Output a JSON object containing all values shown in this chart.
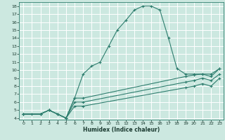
{
  "title": "",
  "xlabel": "Humidex (Indice chaleur)",
  "background_color": "#cce8e0",
  "grid_color": "#ffffff",
  "line_color": "#2e7d6e",
  "xlim": [
    -0.5,
    23.5
  ],
  "ylim": [
    3.8,
    18.5
  ],
  "xticks": [
    0,
    1,
    2,
    3,
    4,
    5,
    6,
    7,
    8,
    9,
    10,
    11,
    12,
    13,
    14,
    15,
    16,
    17,
    18,
    19,
    20,
    21,
    22,
    23
  ],
  "yticks": [
    4,
    5,
    6,
    7,
    8,
    9,
    10,
    11,
    12,
    13,
    14,
    15,
    16,
    17,
    18
  ],
  "line1_x": [
    0,
    1,
    2,
    3,
    4,
    5,
    6,
    7,
    8,
    9,
    10,
    11,
    12,
    13,
    14,
    15,
    16,
    17,
    18,
    19,
    20,
    21,
    22,
    23
  ],
  "line1_y": [
    4.5,
    4.5,
    4.5,
    5.0,
    4.5,
    4.0,
    6.5,
    9.5,
    10.5,
    11.0,
    13.0,
    15.0,
    16.2,
    17.5,
    18.0,
    18.0,
    17.5,
    14.0,
    10.2,
    9.5,
    9.5,
    9.5,
    9.5,
    10.2
  ],
  "line2_x": [
    0,
    2,
    3,
    4,
    5,
    6,
    7,
    19,
    20,
    21,
    22,
    23
  ],
  "line2_y": [
    4.5,
    4.5,
    5.0,
    4.5,
    4.0,
    6.5,
    6.5,
    9.2,
    9.4,
    9.5,
    9.2,
    10.2
  ],
  "line3_x": [
    0,
    2,
    3,
    4,
    5,
    6,
    7,
    19,
    20,
    21,
    22,
    23
  ],
  "line3_y": [
    4.5,
    4.5,
    5.0,
    4.5,
    4.0,
    6.0,
    6.0,
    8.5,
    8.7,
    9.0,
    8.7,
    9.5
  ],
  "line4_x": [
    0,
    2,
    3,
    4,
    5,
    6,
    7,
    19,
    20,
    21,
    22,
    23
  ],
  "line4_y": [
    4.5,
    4.5,
    5.0,
    4.5,
    4.0,
    5.5,
    5.5,
    7.8,
    8.0,
    8.3,
    8.0,
    9.0
  ]
}
